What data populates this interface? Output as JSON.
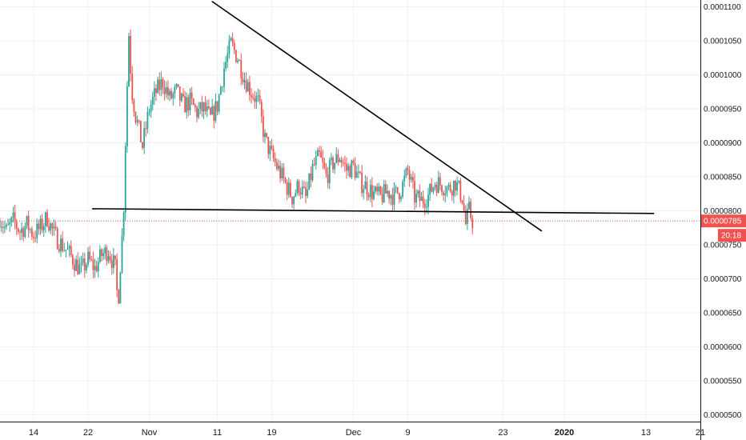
{
  "chart_data": {
    "type": "candlestick",
    "title": "",
    "xlabel": "",
    "ylabel": "",
    "ylim": [
      4.975e-05,
      0.0001105
    ],
    "y_ticks": [
      "0.0001100",
      "0.0001050",
      "0.0001000",
      "0.0000950",
      "0.0000900",
      "0.0000850",
      "0.0000800",
      "0.0000750",
      "0.0000700",
      "0.0000650",
      "0.0000600",
      "0.0000550",
      "0.0000500"
    ],
    "x_ticks": [
      {
        "label": "14",
        "day": 14,
        "bold": false
      },
      {
        "label": "22",
        "day": 22,
        "bold": false
      },
      {
        "label": "Nov",
        "day": 31,
        "bold": false
      },
      {
        "label": "11",
        "day": 41,
        "bold": false
      },
      {
        "label": "19",
        "day": 49,
        "bold": false
      },
      {
        "label": "Dec",
        "day": 61,
        "bold": false
      },
      {
        "label": "9",
        "day": 69,
        "bold": false
      },
      {
        "label": "23",
        "day": 83,
        "bold": false
      },
      {
        "label": "2020",
        "day": 92,
        "bold": true
      },
      {
        "label": "13",
        "day": 104,
        "bold": false
      },
      {
        "label": "21",
        "day": 112,
        "bold": false
      }
    ],
    "last_price": "0.0000785",
    "countdown": "20:18",
    "colors": {
      "up": "#26a69a",
      "down": "#ef5350",
      "line": "#000000",
      "price": "#ef5350",
      "grid": "#eef0f3"
    },
    "path": [
      [
        9,
        7.9e-05
      ],
      [
        10,
        7.7e-05
      ],
      [
        11,
        7.85e-05
      ],
      [
        12,
        7.7e-05
      ],
      [
        13,
        7.8e-05
      ],
      [
        14,
        7.65e-05
      ],
      [
        15,
        7.75e-05
      ],
      [
        16,
        7.9e-05
      ],
      [
        17,
        7.65e-05
      ],
      [
        18,
        7.52e-05
      ],
      [
        19,
        7.4e-05
      ],
      [
        20,
        7.25e-05
      ],
      [
        21,
        7.12e-05
      ],
      [
        22,
        7.28e-05
      ],
      [
        23,
        7.15e-05
      ],
      [
        24,
        7.35e-05
      ],
      [
        25,
        7.42e-05
      ],
      [
        26,
        7.15e-05
      ],
      [
        26.4,
        6.6e-05
      ],
      [
        26.8,
        7.3e-05
      ],
      [
        27.2,
        7.9e-05
      ],
      [
        27.6,
        9.4e-05
      ],
      [
        28.0,
        0.000106
      ],
      [
        28.4,
        9.8e-05
      ],
      [
        29,
        9.4e-05
      ],
      [
        30,
        8.95e-05
      ],
      [
        31,
        9.5e-05
      ],
      [
        32,
        9.75e-05
      ],
      [
        33,
        9.9e-05
      ],
      [
        34,
        9.65e-05
      ],
      [
        35,
        9.75e-05
      ],
      [
        36,
        9.55e-05
      ],
      [
        37,
        9.6e-05
      ],
      [
        38,
        9.45e-05
      ],
      [
        39,
        9.5e-05
      ],
      [
        40,
        9.35e-05
      ],
      [
        41,
        9.55e-05
      ],
      [
        42,
        0.000101
      ],
      [
        43,
        0.0001045
      ],
      [
        44,
        0.0001025
      ],
      [
        45,
        9.95e-05
      ],
      [
        46,
        9.75e-05
      ],
      [
        47,
        9.6e-05
      ],
      [
        48,
        9.05e-05
      ],
      [
        49,
        8.8e-05
      ],
      [
        50,
        8.6e-05
      ],
      [
        51,
        8.4e-05
      ],
      [
        52,
        8.2e-05
      ],
      [
        53,
        8.38e-05
      ],
      [
        54,
        8.18e-05
      ],
      [
        55,
        8.62e-05
      ],
      [
        56,
        8.8e-05
      ],
      [
        57,
        8.5e-05
      ],
      [
        58,
        8.7e-05
      ],
      [
        59,
        8.8e-05
      ],
      [
        60,
        8.6e-05
      ],
      [
        61,
        8.65e-05
      ],
      [
        62,
        8.42e-05
      ],
      [
        63,
        8.35e-05
      ],
      [
        64,
        8.25e-05
      ],
      [
        65,
        8.2e-05
      ],
      [
        66,
        8.28e-05
      ],
      [
        67,
        8.22e-05
      ],
      [
        68,
        8.32e-05
      ],
      [
        69,
        8.58e-05
      ],
      [
        70,
        8.2e-05
      ],
      [
        71,
        8.15e-05
      ],
      [
        72,
        8.22e-05
      ],
      [
        73,
        8.42e-05
      ],
      [
        74,
        8.38e-05
      ],
      [
        75,
        8.32e-05
      ],
      [
        76,
        8.42e-05
      ],
      [
        77,
        8.2e-05
      ],
      [
        77.5,
        7.8e-05
      ],
      [
        78,
        8e-05
      ],
      [
        78.5,
        7.85e-05
      ]
    ],
    "trend_lines": [
      {
        "name": "descending-trendline",
        "from": [
          40.2,
          0.0001108
        ],
        "to": [
          88.7,
          7.7e-05
        ]
      },
      {
        "name": "horizontal-support-line",
        "from": [
          22.6,
          8.03e-05
        ],
        "to": [
          105.2,
          7.96e-05
        ]
      }
    ]
  }
}
